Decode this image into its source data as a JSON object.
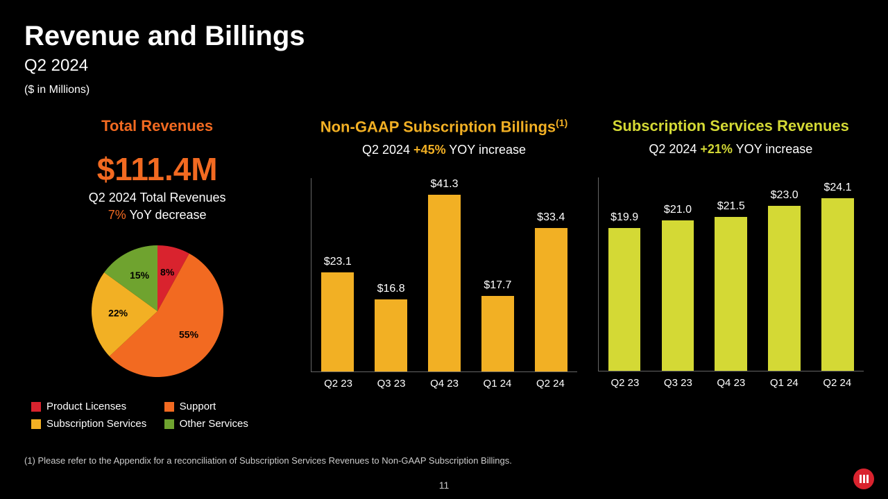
{
  "header": {
    "title": "Revenue and Billings",
    "subtitle": "Q2 2024",
    "units": "($ in Millions)"
  },
  "panel1": {
    "title": "Total Revenues",
    "title_color": "#f26a21",
    "big_value": "$111.4M",
    "big_value_color": "#f26a21",
    "sub_line1": "Q2 2024 Total Revenues",
    "sub_line2_accent": "7%",
    "sub_line2_rest": " YoY decrease",
    "pie": {
      "type": "pie",
      "slices": [
        {
          "label": "Product Licenses",
          "value": 8,
          "color": "#d9232e",
          "text": "8%"
        },
        {
          "label": "Support",
          "value": 55,
          "color": "#f26a21",
          "text": "55%"
        },
        {
          "label": "Subscription Services",
          "value": 22,
          "color": "#f2b024",
          "text": "22%"
        },
        {
          "label": "Other Services",
          "value": 15,
          "color": "#6fa32f",
          "text": "15%"
        }
      ],
      "radius": 95,
      "label_fontsize": 14,
      "label_color": "#000000"
    },
    "legend": [
      {
        "label": "Product Licenses",
        "color": "#d9232e"
      },
      {
        "label": "Support",
        "color": "#f26a21"
      },
      {
        "label": "Subscription Services",
        "color": "#f2b024"
      },
      {
        "label": "Other Services",
        "color": "#6fa32f"
      }
    ]
  },
  "panel2": {
    "title": "Non-GAAP Subscription Billings",
    "title_sup": "(1)",
    "title_color": "#f2b024",
    "sub_prefix": "Q2 2024 ",
    "sub_accent": "+45%",
    "sub_suffix": " YOY increase",
    "accent_color": "#f2b024",
    "chart": {
      "type": "bar",
      "categories": [
        "Q2 23",
        "Q3 23",
        "Q4 23",
        "Q1 24",
        "Q2 24"
      ],
      "values": [
        23.1,
        16.8,
        41.3,
        17.7,
        33.4
      ],
      "display": [
        "$23.1",
        "$16.8",
        "$41.3",
        "$17.7",
        "$33.4"
      ],
      "bar_color": "#f2b024",
      "ymax": 45,
      "label_fontsize": 15,
      "value_fontsize": 16,
      "axis_color": "#666666"
    }
  },
  "panel3": {
    "title": "Subscription Services Revenues",
    "title_color": "#d4d935",
    "sub_prefix": "Q2 2024 ",
    "sub_accent": "+21%",
    "sub_suffix": " YOY increase",
    "accent_color": "#d4d935",
    "chart": {
      "type": "bar",
      "categories": [
        "Q2 23",
        "Q3 23",
        "Q4 23",
        "Q1 24",
        "Q2 24"
      ],
      "values": [
        19.9,
        21.0,
        21.5,
        23.0,
        24.1
      ],
      "display": [
        "$19.9",
        "$21.0",
        "$21.5",
        "$23.0",
        "$24.1"
      ],
      "bar_color": "#d4d935",
      "ymax": 27,
      "label_fontsize": 15,
      "value_fontsize": 16,
      "axis_color": "#666666"
    }
  },
  "footnote": "(1) Please refer to the Appendix for a reconciliation of Subscription Services Revenues to Non-GAAP Subscription Billings.",
  "page_number": "11",
  "colors": {
    "background": "#000000",
    "text": "#ffffff",
    "muted": "#cccccc",
    "logo_bg": "#d9232e"
  }
}
